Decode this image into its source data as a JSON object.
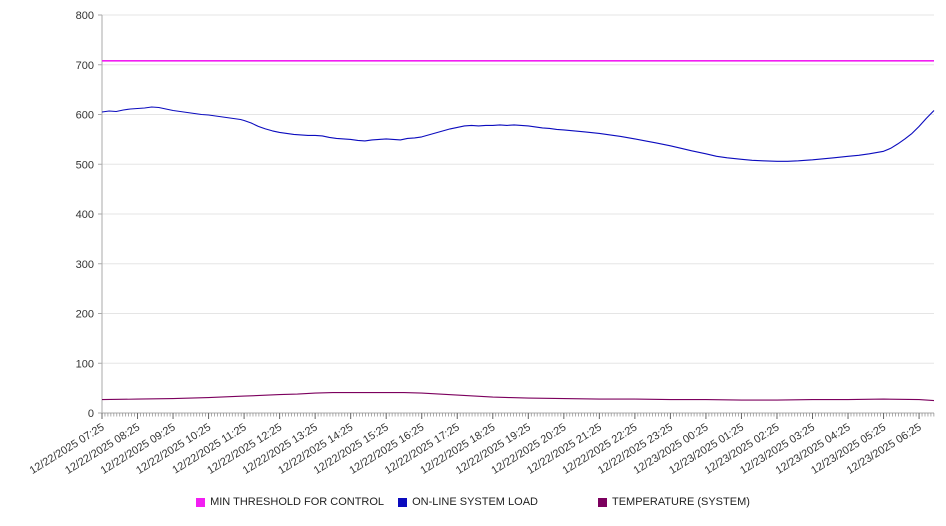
{
  "chart_data": {
    "type": "line",
    "title": "",
    "xlabel": "",
    "ylabel": "",
    "ylim": [
      0,
      800
    ],
    "yticks": [
      0,
      100,
      200,
      300,
      400,
      500,
      600,
      700,
      800
    ],
    "grid": true,
    "legend_position": "bottom",
    "grid_color": "#e5e5e5",
    "axis_color": "#aaaaaa",
    "tick_text_color": "#333333",
    "t_max": 23.42,
    "x_labels": [
      "12/22/2025 07:25",
      "12/22/2025 08:25",
      "12/22/2025 09:25",
      "12/22/2025 10:25",
      "12/22/2025 11:25",
      "12/22/2025 12:25",
      "12/22/2025 13:25",
      "12/22/2025 14:25",
      "12/22/2025 15:25",
      "12/22/2025 16:25",
      "12/22/2025 17:25",
      "12/22/2025 18:25",
      "12/22/2025 19:25",
      "12/22/2025 20:25",
      "12/22/2025 21:25",
      "12/22/2025 22:25",
      "12/22/2025 23:25",
      "12/23/2025 00:25",
      "12/23/2025 01:25",
      "12/23/2025 02:25",
      "12/23/2025 03:25",
      "12/23/2025 04:25",
      "12/23/2025 05:25",
      "12/23/2025 06:25"
    ],
    "series": [
      {
        "name": "MIN THRESHOLD FOR CONTROL",
        "color": "#f21ef2",
        "width": 1.6,
        "points": [
          [
            0,
            708
          ],
          [
            23.42,
            708
          ]
        ]
      },
      {
        "name": "ON-LINE SYSTEM LOAD",
        "color": "#0b0bbe",
        "width": 1.1,
        "points": [
          [
            0,
            605
          ],
          [
            0.2,
            607
          ],
          [
            0.4,
            606
          ],
          [
            0.6,
            609
          ],
          [
            0.8,
            611
          ],
          [
            1,
            612
          ],
          [
            1.2,
            613
          ],
          [
            1.4,
            615
          ],
          [
            1.6,
            614
          ],
          [
            1.8,
            611
          ],
          [
            2,
            608
          ],
          [
            2.2,
            606
          ],
          [
            2.5,
            603
          ],
          [
            2.8,
            600
          ],
          [
            3,
            599
          ],
          [
            3.3,
            596
          ],
          [
            3.6,
            593
          ],
          [
            3.9,
            590
          ],
          [
            4,
            588
          ],
          [
            4.2,
            583
          ],
          [
            4.4,
            576
          ],
          [
            4.6,
            571
          ],
          [
            4.8,
            567
          ],
          [
            5,
            564
          ],
          [
            5.2,
            562
          ],
          [
            5.4,
            560
          ],
          [
            5.6,
            559
          ],
          [
            5.8,
            558
          ],
          [
            6,
            558
          ],
          [
            6.2,
            557
          ],
          [
            6.4,
            554
          ],
          [
            6.6,
            552
          ],
          [
            6.8,
            551
          ],
          [
            7,
            550
          ],
          [
            7.2,
            548
          ],
          [
            7.4,
            547
          ],
          [
            7.6,
            549
          ],
          [
            7.8,
            550
          ],
          [
            8,
            551
          ],
          [
            8.2,
            550
          ],
          [
            8.4,
            549
          ],
          [
            8.6,
            552
          ],
          [
            8.8,
            553
          ],
          [
            9,
            555
          ],
          [
            9.2,
            559
          ],
          [
            9.4,
            563
          ],
          [
            9.6,
            567
          ],
          [
            9.8,
            571
          ],
          [
            10,
            574
          ],
          [
            10.2,
            577
          ],
          [
            10.4,
            578
          ],
          [
            10.6,
            577
          ],
          [
            10.8,
            578
          ],
          [
            11,
            578
          ],
          [
            11.2,
            579
          ],
          [
            11.4,
            578
          ],
          [
            11.6,
            579
          ],
          [
            11.8,
            578
          ],
          [
            12,
            577
          ],
          [
            12.2,
            575
          ],
          [
            12.4,
            573
          ],
          [
            12.6,
            572
          ],
          [
            12.8,
            570
          ],
          [
            13,
            569
          ],
          [
            13.3,
            567
          ],
          [
            13.6,
            565
          ],
          [
            14,
            562
          ],
          [
            14.3,
            559
          ],
          [
            14.6,
            556
          ],
          [
            15,
            551
          ],
          [
            15.3,
            547
          ],
          [
            15.6,
            543
          ],
          [
            16,
            537
          ],
          [
            16.3,
            532
          ],
          [
            16.6,
            527
          ],
          [
            17,
            521
          ],
          [
            17.3,
            516
          ],
          [
            17.6,
            513
          ],
          [
            18,
            510
          ],
          [
            18.3,
            508
          ],
          [
            18.6,
            507
          ],
          [
            19,
            506
          ],
          [
            19.3,
            506
          ],
          [
            19.6,
            507
          ],
          [
            20,
            509
          ],
          [
            20.3,
            511
          ],
          [
            20.6,
            513
          ],
          [
            21,
            516
          ],
          [
            21.3,
            518
          ],
          [
            21.6,
            521
          ],
          [
            22,
            526
          ],
          [
            22.2,
            532
          ],
          [
            22.4,
            541
          ],
          [
            22.6,
            551
          ],
          [
            22.8,
            562
          ],
          [
            23,
            576
          ],
          [
            23.2,
            592
          ],
          [
            23.42,
            608
          ]
        ]
      },
      {
        "name": "TEMPERATURE (SYSTEM)",
        "color": "#7c005e",
        "width": 1.1,
        "points": [
          [
            0,
            27
          ],
          [
            1,
            28
          ],
          [
            2,
            29
          ],
          [
            3,
            31
          ],
          [
            4,
            34
          ],
          [
            5,
            37
          ],
          [
            5.5,
            38
          ],
          [
            6,
            40
          ],
          [
            6.5,
            41
          ],
          [
            7,
            41
          ],
          [
            7.5,
            41
          ],
          [
            8,
            41
          ],
          [
            8.5,
            41
          ],
          [
            9,
            40
          ],
          [
            9.5,
            38
          ],
          [
            10,
            36
          ],
          [
            10.5,
            34
          ],
          [
            11,
            32
          ],
          [
            11.5,
            31
          ],
          [
            12,
            30
          ],
          [
            13,
            29
          ],
          [
            14,
            28
          ],
          [
            15,
            28
          ],
          [
            16,
            27
          ],
          [
            17,
            27
          ],
          [
            18,
            26
          ],
          [
            19,
            26
          ],
          [
            20,
            27
          ],
          [
            21,
            27
          ],
          [
            22,
            28
          ],
          [
            23,
            27
          ],
          [
            23.42,
            25
          ]
        ]
      }
    ]
  }
}
